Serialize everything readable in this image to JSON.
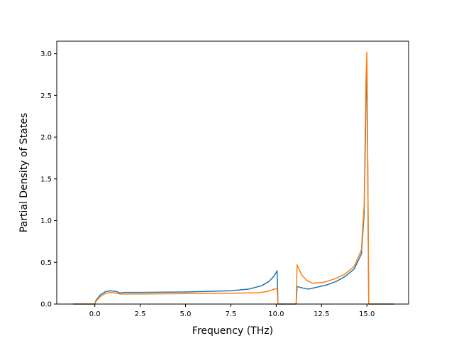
{
  "chart_data": {
    "type": "line",
    "xlabel": "Frequency (THz)",
    "ylabel": "Partial Density of States",
    "xlim": [
      -2.1,
      17.3
    ],
    "ylim": [
      0,
      3.15
    ],
    "xticks": [
      0.0,
      2.5,
      5.0,
      7.5,
      10.0,
      12.5,
      15.0
    ],
    "xtick_labels": [
      "0.0",
      "2.5",
      "5.0",
      "7.5",
      "10.0",
      "12.5",
      "15.0"
    ],
    "yticks": [
      0.0,
      0.5,
      1.0,
      1.5,
      2.0,
      2.5,
      3.0
    ],
    "ytick_labels": [
      "0.0",
      "0.5",
      "1.0",
      "1.5",
      "2.0",
      "2.5",
      "3.0"
    ],
    "grid": false,
    "legend": "none",
    "series": [
      {
        "color": "#1f77b4",
        "x": [
          -1.2,
          0.0,
          0.05,
          0.3,
          0.6,
          0.9,
          1.2,
          1.4,
          1.6,
          2.5,
          5.0,
          7.5,
          8.5,
          9.2,
          9.6,
          9.9,
          10.05,
          10.1,
          11.0,
          11.1,
          11.15,
          11.5,
          11.8,
          12.2,
          12.8,
          13.3,
          13.8,
          14.3,
          14.7,
          14.85,
          14.95,
          15.0,
          15.05,
          15.1,
          16.5
        ],
        "y": [
          0.0,
          0.0,
          0.04,
          0.11,
          0.15,
          0.16,
          0.15,
          0.13,
          0.14,
          0.14,
          0.145,
          0.16,
          0.18,
          0.22,
          0.27,
          0.34,
          0.4,
          0.0,
          0.0,
          0.0,
          0.21,
          0.19,
          0.18,
          0.2,
          0.23,
          0.27,
          0.33,
          0.42,
          0.6,
          1.1,
          2.4,
          2.9,
          1.5,
          0.0,
          0.0
        ]
      },
      {
        "color": "#ff7f0e",
        "x": [
          -1.2,
          0.0,
          0.05,
          0.3,
          0.6,
          0.9,
          1.2,
          1.4,
          1.6,
          2.5,
          5.0,
          7.5,
          9.0,
          9.5,
          9.8,
          10.05,
          10.1,
          11.0,
          11.1,
          11.15,
          11.4,
          11.7,
          12.0,
          12.6,
          13.2,
          13.8,
          14.3,
          14.7,
          14.85,
          14.95,
          15.0,
          15.05,
          15.1,
          16.5
        ],
        "y": [
          0.0,
          0.0,
          0.03,
          0.09,
          0.13,
          0.14,
          0.13,
          0.12,
          0.12,
          0.12,
          0.125,
          0.13,
          0.135,
          0.15,
          0.17,
          0.19,
          0.0,
          0.0,
          0.0,
          0.47,
          0.35,
          0.28,
          0.25,
          0.26,
          0.3,
          0.36,
          0.45,
          0.65,
          1.2,
          2.7,
          3.02,
          1.6,
          0.0,
          0.0
        ]
      }
    ]
  }
}
